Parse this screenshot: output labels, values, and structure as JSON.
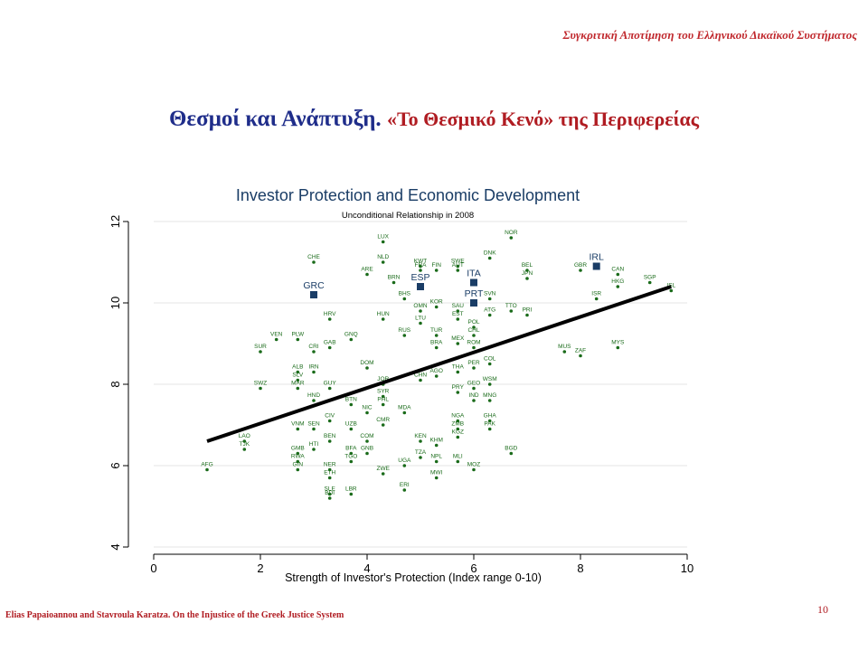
{
  "slide": {
    "header": "Συγκριτική Αποτίμηση του Ελληνικού Δικαϊκού Συστήματος",
    "title_main": "Θεσμοί και Ανάπτυξη.",
    "title_sub": "«Το Θεσμικό Κενό» της Περιφερείας",
    "footer": "Elias Papaioannou and Stavroula Karatza. On the Injustice of the Greek Justice System",
    "page_number": "10"
  },
  "colors": {
    "point": "#1a6b1a",
    "highlight": "#1a3d66",
    "fit_line": "#000000",
    "grid": "#e5e5e5",
    "header_red": "#c0282d",
    "title_blue": "#1f2d8a"
  },
  "chart_data": {
    "type": "scatter",
    "title": "Investor Protection and Economic Development",
    "subtitle": "Unconditional Relationship in 2008",
    "xlabel": "Strength of Investor's Protection (Index range 0-10)",
    "ylabel": "",
    "xlim": [
      0,
      10
    ],
    "ylim": [
      4,
      12
    ],
    "xticks": [
      0,
      2,
      4,
      6,
      8,
      10
    ],
    "yticks": [
      4,
      6,
      8,
      10,
      12
    ],
    "grid": true,
    "fit_line": {
      "x": [
        1.0,
        9.7
      ],
      "y": [
        6.6,
        10.4
      ]
    },
    "points": [
      {
        "label": "LUX",
        "x": 4.3,
        "y": 11.5
      },
      {
        "label": "NOR",
        "x": 6.7,
        "y": 11.6
      },
      {
        "label": "CHE",
        "x": 3.0,
        "y": 11.0
      },
      {
        "label": "NLD",
        "x": 4.3,
        "y": 11.0
      },
      {
        "label": "KWT",
        "x": 5.0,
        "y": 10.9
      },
      {
        "label": "DNK",
        "x": 6.3,
        "y": 11.1
      },
      {
        "label": "SWE",
        "x": 5.7,
        "y": 10.9
      },
      {
        "label": "ARE",
        "x": 4.0,
        "y": 10.7
      },
      {
        "label": "BEL",
        "x": 7.0,
        "y": 10.8
      },
      {
        "label": "GBR",
        "x": 8.0,
        "y": 10.8
      },
      {
        "label": "IRL",
        "x": 8.3,
        "y": 10.9,
        "highlight": true
      },
      {
        "label": "CAN",
        "x": 8.7,
        "y": 10.7
      },
      {
        "label": "SGP",
        "x": 9.3,
        "y": 10.5
      },
      {
        "label": "HKG",
        "x": 8.7,
        "y": 10.4
      },
      {
        "label": "ISR",
        "x": 8.3,
        "y": 10.1
      },
      {
        "label": "BRN",
        "x": 4.5,
        "y": 10.5
      },
      {
        "label": "ESP",
        "x": 5.0,
        "y": 10.4,
        "highlight": true
      },
      {
        "label": "ITA",
        "x": 6.0,
        "y": 10.5,
        "highlight": true
      },
      {
        "label": "GRC",
        "x": 3.0,
        "y": 10.2,
        "highlight": true
      },
      {
        "label": "PRT",
        "x": 6.0,
        "y": 10.0,
        "highlight": true
      },
      {
        "label": "BHS",
        "x": 4.7,
        "y": 10.1
      },
      {
        "label": "KOR",
        "x": 5.3,
        "y": 9.9
      },
      {
        "label": "SVN",
        "x": 6.3,
        "y": 10.1
      },
      {
        "label": "OMN",
        "x": 5.0,
        "y": 9.8
      },
      {
        "label": "SAU",
        "x": 5.7,
        "y": 9.8
      },
      {
        "label": "EST",
        "x": 5.7,
        "y": 9.6
      },
      {
        "label": "TTO",
        "x": 6.7,
        "y": 9.8
      },
      {
        "label": "PRI",
        "x": 7.0,
        "y": 9.7
      },
      {
        "label": "ATG",
        "x": 6.3,
        "y": 9.7
      },
      {
        "label": "HRV",
        "x": 3.3,
        "y": 9.6
      },
      {
        "label": "HUN",
        "x": 4.3,
        "y": 9.6
      },
      {
        "label": "LTU",
        "x": 5.0,
        "y": 9.5
      },
      {
        "label": "POL",
        "x": 6.0,
        "y": 9.4
      },
      {
        "label": "RUS",
        "x": 4.7,
        "y": 9.2
      },
      {
        "label": "TUR",
        "x": 5.3,
        "y": 9.2
      },
      {
        "label": "CHL",
        "x": 6.0,
        "y": 9.2
      },
      {
        "label": "VEN",
        "x": 2.3,
        "y": 9.1
      },
      {
        "label": "PLW",
        "x": 2.7,
        "y": 9.1
      },
      {
        "label": "GNQ",
        "x": 3.7,
        "y": 9.1
      },
      {
        "label": "GAB",
        "x": 3.3,
        "y": 8.9
      },
      {
        "label": "MEX",
        "x": 5.7,
        "y": 9.0
      },
      {
        "label": "ROM",
        "x": 6.0,
        "y": 8.9
      },
      {
        "label": "BRA",
        "x": 5.3,
        "y": 8.9
      },
      {
        "label": "SUR",
        "x": 2.0,
        "y": 8.8
      },
      {
        "label": "CRI",
        "x": 3.0,
        "y": 8.8
      },
      {
        "label": "MUS",
        "x": 7.7,
        "y": 8.8
      },
      {
        "label": "ZAF",
        "x": 8.0,
        "y": 8.7
      },
      {
        "label": "MYS",
        "x": 8.7,
        "y": 8.9
      },
      {
        "label": "COL",
        "x": 6.3,
        "y": 8.5
      },
      {
        "label": "PER",
        "x": 6.0,
        "y": 8.4
      },
      {
        "label": "DOM",
        "x": 4.0,
        "y": 8.4
      },
      {
        "label": "ALB",
        "x": 2.7,
        "y": 8.3
      },
      {
        "label": "IRN",
        "x": 3.0,
        "y": 8.3
      },
      {
        "label": "SLV",
        "x": 2.7,
        "y": 8.1
      },
      {
        "label": "THA",
        "x": 5.7,
        "y": 8.3
      },
      {
        "label": "CHN",
        "x": 5.0,
        "y": 8.1
      },
      {
        "label": "AGO",
        "x": 5.3,
        "y": 8.2
      },
      {
        "label": "SWZ",
        "x": 2.0,
        "y": 7.9
      },
      {
        "label": "MAR",
        "x": 2.7,
        "y": 7.9
      },
      {
        "label": "GUY",
        "x": 3.3,
        "y": 7.9
      },
      {
        "label": "JOR",
        "x": 4.3,
        "y": 8.0
      },
      {
        "label": "PRY",
        "x": 5.7,
        "y": 7.8
      },
      {
        "label": "GEO",
        "x": 6.0,
        "y": 7.9
      },
      {
        "label": "WSM",
        "x": 6.3,
        "y": 8.0
      },
      {
        "label": "SYR",
        "x": 4.3,
        "y": 7.7
      },
      {
        "label": "PHL",
        "x": 4.3,
        "y": 7.5
      },
      {
        "label": "HND",
        "x": 3.0,
        "y": 7.6
      },
      {
        "label": "BTN",
        "x": 3.7,
        "y": 7.5
      },
      {
        "label": "IND",
        "x": 6.0,
        "y": 7.6
      },
      {
        "label": "MNG",
        "x": 6.3,
        "y": 7.6
      },
      {
        "label": "MDA",
        "x": 4.7,
        "y": 7.3
      },
      {
        "label": "NIC",
        "x": 4.0,
        "y": 7.3
      },
      {
        "label": "CIV",
        "x": 3.3,
        "y": 7.1
      },
      {
        "label": "VNM",
        "x": 2.7,
        "y": 6.9
      },
      {
        "label": "SEN",
        "x": 3.0,
        "y": 6.9
      },
      {
        "label": "UZB",
        "x": 3.7,
        "y": 6.9
      },
      {
        "label": "CMR",
        "x": 4.3,
        "y": 7.0
      },
      {
        "label": "NGA",
        "x": 5.7,
        "y": 7.1
      },
      {
        "label": "GHA",
        "x": 6.3,
        "y": 7.1
      },
      {
        "label": "ZMB",
        "x": 5.7,
        "y": 6.9
      },
      {
        "label": "PAK",
        "x": 6.3,
        "y": 6.9
      },
      {
        "label": "KGZ",
        "x": 5.7,
        "y": 6.7
      },
      {
        "label": "LAO",
        "x": 1.7,
        "y": 6.6
      },
      {
        "label": "TJK",
        "x": 1.7,
        "y": 6.4
      },
      {
        "label": "COM",
        "x": 4.0,
        "y": 6.6
      },
      {
        "label": "KEN",
        "x": 5.0,
        "y": 6.6
      },
      {
        "label": "KHM",
        "x": 5.3,
        "y": 6.5
      },
      {
        "label": "BEN",
        "x": 3.3,
        "y": 6.6
      },
      {
        "label": "HTI",
        "x": 3.0,
        "y": 6.4
      },
      {
        "label": "GMB",
        "x": 2.7,
        "y": 6.3
      },
      {
        "label": "BFA",
        "x": 3.7,
        "y": 6.3
      },
      {
        "label": "GNB",
        "x": 4.0,
        "y": 6.3
      },
      {
        "label": "BGD",
        "x": 6.7,
        "y": 6.3
      },
      {
        "label": "RWA",
        "x": 2.7,
        "y": 6.1
      },
      {
        "label": "TZA",
        "x": 5.0,
        "y": 6.2
      },
      {
        "label": "NPL",
        "x": 5.3,
        "y": 6.1
      },
      {
        "label": "MLI",
        "x": 5.7,
        "y": 6.1
      },
      {
        "label": "TGO",
        "x": 3.7,
        "y": 6.1
      },
      {
        "label": "AFG",
        "x": 1.0,
        "y": 5.9
      },
      {
        "label": "GIN",
        "x": 2.7,
        "y": 5.9
      },
      {
        "label": "UGA",
        "x": 4.7,
        "y": 6.0
      },
      {
        "label": "MOZ",
        "x": 6.0,
        "y": 5.9
      },
      {
        "label": "NER",
        "x": 3.3,
        "y": 5.9
      },
      {
        "label": "ZWE",
        "x": 4.3,
        "y": 5.8
      },
      {
        "label": "MWI",
        "x": 5.3,
        "y": 5.7
      },
      {
        "label": "ETH",
        "x": 3.3,
        "y": 5.7
      },
      {
        "label": "ERI",
        "x": 4.7,
        "y": 5.4
      },
      {
        "label": "SLE",
        "x": 3.3,
        "y": 5.3
      },
      {
        "label": "LBR",
        "x": 3.7,
        "y": 5.3
      },
      {
        "label": "BDI",
        "x": 3.3,
        "y": 5.2
      },
      {
        "label": "ISL",
        "x": 9.7,
        "y": 10.3
      },
      {
        "label": "FIN",
        "x": 5.3,
        "y": 10.8
      },
      {
        "label": "FRA",
        "x": 5.0,
        "y": 10.8
      },
      {
        "label": "AUT",
        "x": 5.7,
        "y": 10.8
      },
      {
        "label": "JPN",
        "x": 7.0,
        "y": 10.6
      }
    ]
  }
}
